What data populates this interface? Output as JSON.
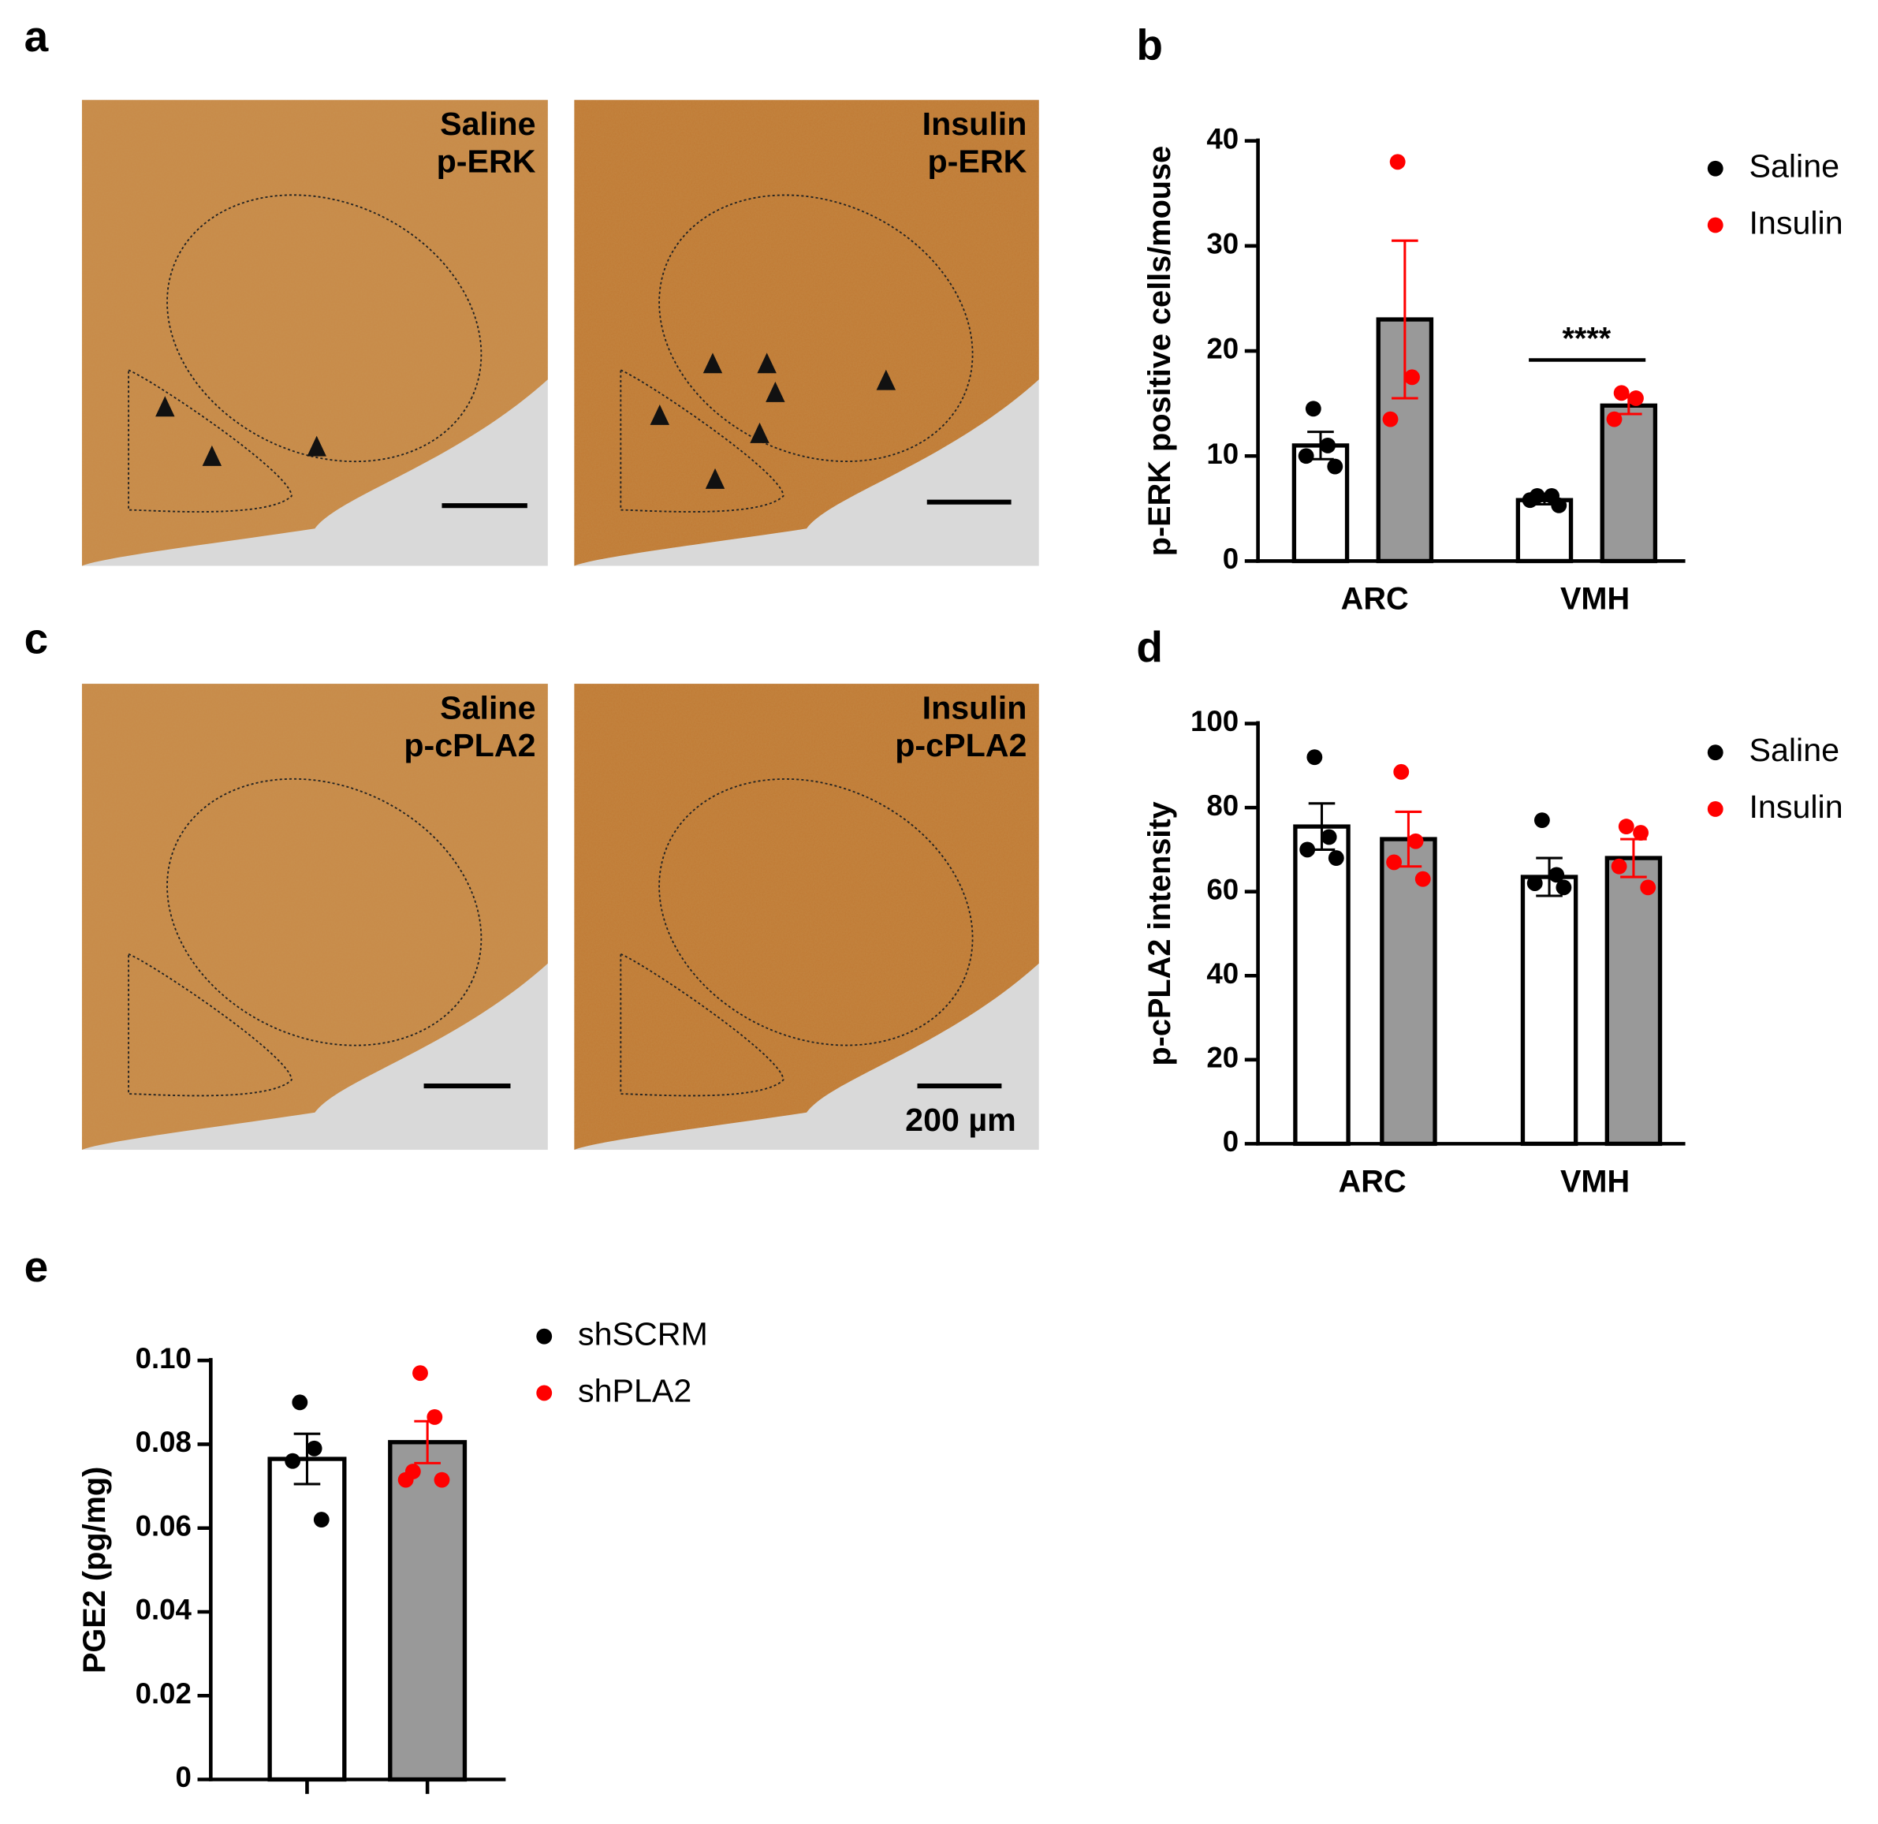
{
  "panel_labels": [
    "a",
    "b",
    "c",
    "d",
    "e"
  ],
  "images": [
    {
      "label": [
        "Saline",
        "p-ERK"
      ]
    },
    {
      "label": [
        "Insulin",
        "p-ERK"
      ]
    },
    {
      "label": [
        "Saline",
        "p-cPLA2"
      ]
    },
    {
      "label": [
        "Insulin",
        "p-cPLA2"
      ]
    }
  ],
  "scale_bar_label": "200 µm",
  "chart_data": [
    {
      "type": "bar",
      "ylabel": "p-ERK positive cells/mouse",
      "categories": [
        "ARC",
        "VMH"
      ],
      "ylim": [
        0,
        40
      ],
      "yticks": [
        0,
        10,
        20,
        30,
        40
      ],
      "series": [
        {
          "name": "Saline",
          "color": "#000000",
          "bar_color": "#ffffff",
          "values": [
            11,
            5.8
          ],
          "errors": [
            1.3,
            0.4
          ],
          "points": [
            [
              14.5,
              11,
              10,
              9
            ],
            [
              6.2,
              6.2,
              5.8,
              5.3
            ]
          ]
        },
        {
          "name": "Insulin",
          "color": "#ff0000",
          "bar_color": "#999999",
          "values": [
            23,
            14.8
          ],
          "errors": [
            7.5,
            0.8
          ],
          "points": [
            [
              38,
              17.5,
              13.5
            ],
            [
              16,
              15.5,
              13.5
            ]
          ]
        }
      ],
      "annotation": "****"
    },
    {
      "type": "bar",
      "ylabel": "p-cPLA2 intensity",
      "categories": [
        "ARC",
        "VMH"
      ],
      "ylim": [
        0,
        100
      ],
      "yticks": [
        0,
        20,
        40,
        60,
        80,
        100
      ],
      "series": [
        {
          "name": "Saline",
          "color": "#000000",
          "bar_color": "#ffffff",
          "values": [
            75.5,
            63.5
          ],
          "errors": [
            5.5,
            4.5
          ],
          "points": [
            [
              92,
              73,
              70,
              68
            ],
            [
              77,
              64,
              62,
              61
            ]
          ]
        },
        {
          "name": "Insulin",
          "color": "#ff0000",
          "bar_color": "#999999",
          "values": [
            72.5,
            68
          ],
          "errors": [
            6.5,
            4.5
          ],
          "points": [
            [
              88.5,
              72,
              67,
              63
            ],
            [
              75.5,
              74,
              66,
              61
            ]
          ]
        }
      ]
    },
    {
      "type": "bar",
      "ylabel": "PGE2 (pg/mg)",
      "categories": [
        null,
        null
      ],
      "ylim": [
        0,
        0.1
      ],
      "yticks": [
        0,
        0.02,
        0.04,
        0.06,
        0.08,
        {
          "value": 0.1,
          "label": "0.10"
        }
      ],
      "series": [
        {
          "name": "shSCRM",
          "color": "#000000",
          "bar_color": "#ffffff",
          "values": [
            0.0765,
            null
          ],
          "errors": [
            0.006,
            null
          ],
          "points": [
            [
              0.09,
              0.079,
              0.076,
              0.062
            ],
            null
          ]
        },
        {
          "name": "shPLA2",
          "color": "#ff0000",
          "bar_color": "#999999",
          "values": [
            null,
            0.0805
          ],
          "errors": [
            null,
            0.005
          ],
          "points": [
            null,
            [
              0.097,
              0.0865,
              0.0735,
              0.0715,
              0.0715
            ]
          ]
        }
      ]
    }
  ]
}
